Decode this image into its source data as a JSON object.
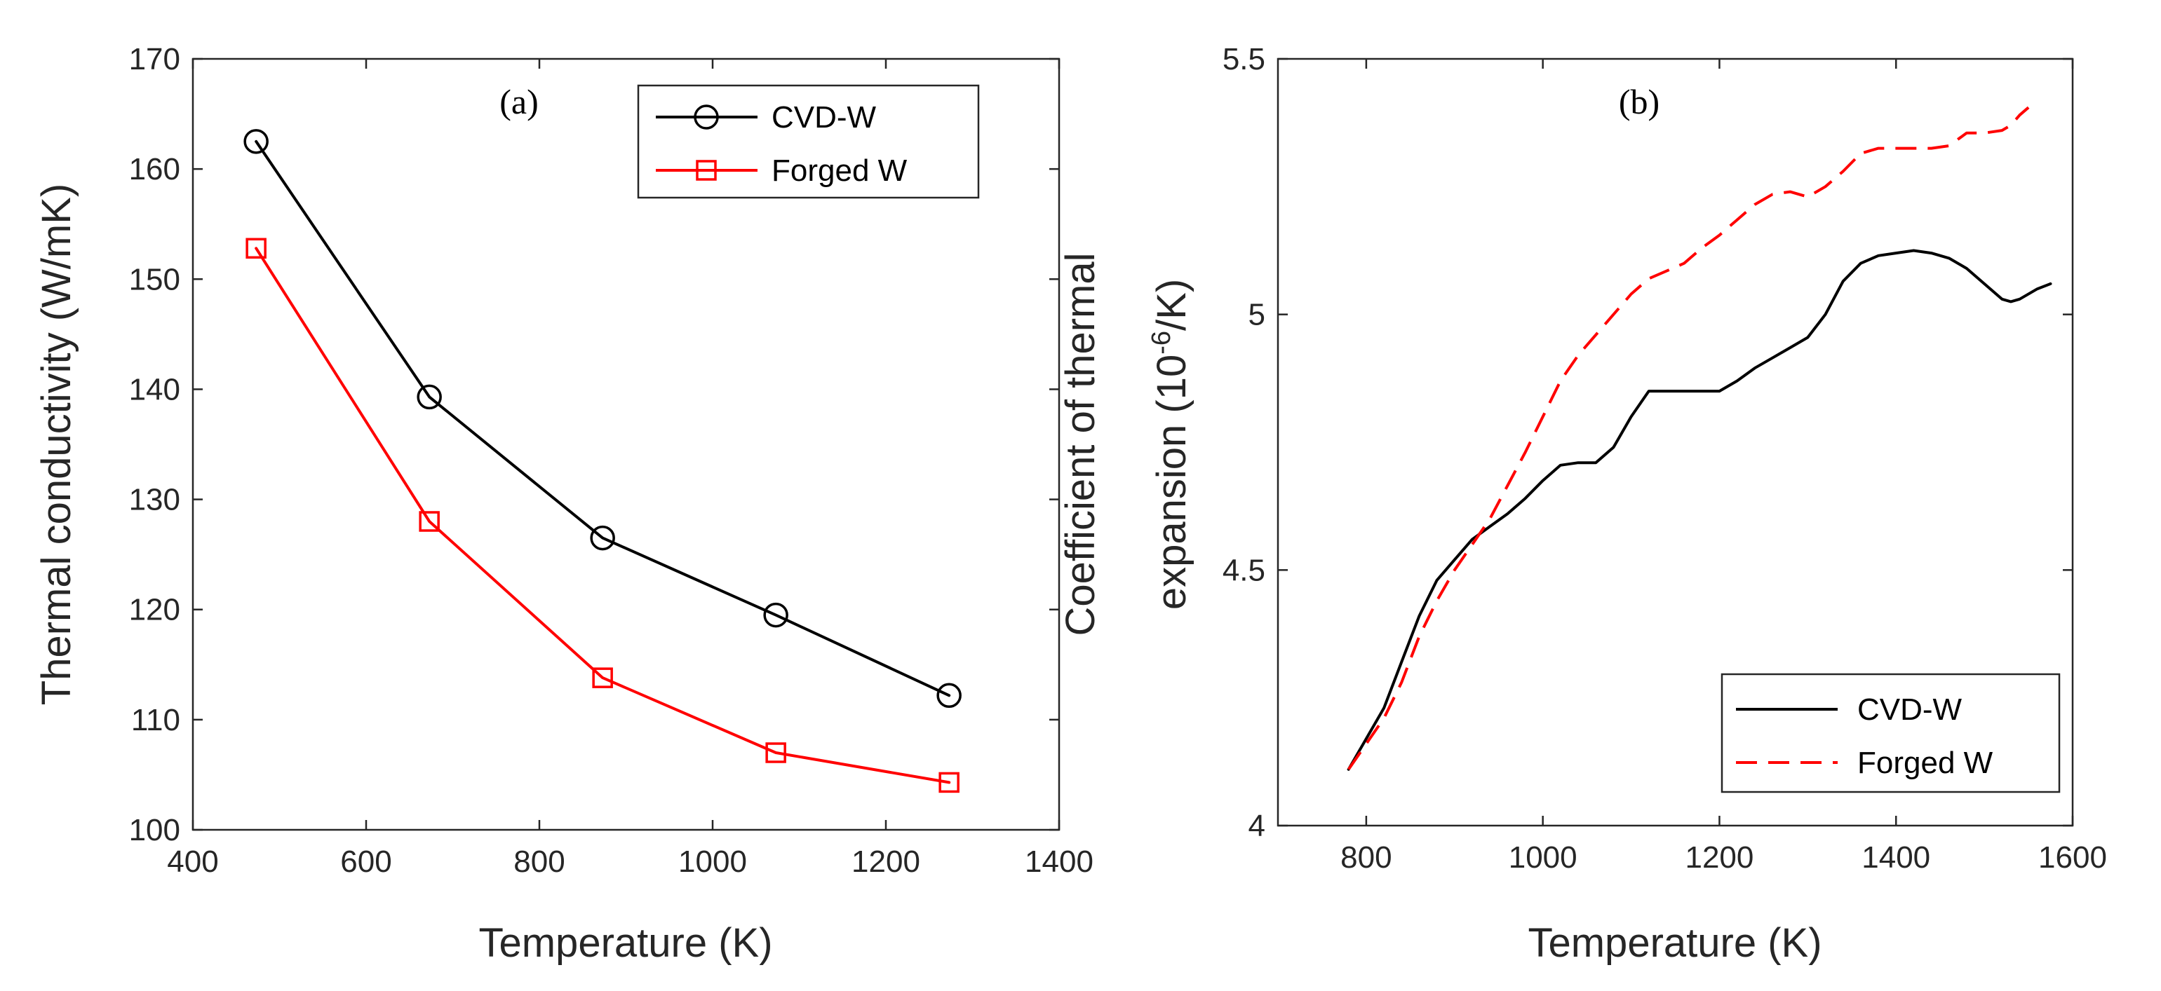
{
  "chart_data": [
    {
      "type": "line",
      "panel_label": "(a)",
      "title": "",
      "xlabel": "Temperature (K)",
      "ylabel": "Thermal conductivity (W/mK)",
      "xlim": [
        400,
        1400
      ],
      "ylim": [
        100,
        170
      ],
      "xticks": [
        400,
        600,
        800,
        1000,
        1200,
        1400
      ],
      "yticks": [
        100,
        110,
        120,
        130,
        140,
        150,
        160,
        170
      ],
      "grid": false,
      "legend_position": "top-right",
      "series": [
        {
          "name": "CVD-W",
          "color": "#000000",
          "line_style": "solid",
          "marker": "circle",
          "x": [
            473,
            673,
            873,
            1073,
            1273
          ],
          "y": [
            162.5,
            139.3,
            126.5,
            119.5,
            112.2
          ]
        },
        {
          "name": "Forged W",
          "color": "#ff0000",
          "line_style": "solid",
          "marker": "square",
          "x": [
            473,
            673,
            873,
            1073,
            1273
          ],
          "y": [
            152.8,
            128.0,
            113.8,
            107.0,
            104.3
          ]
        }
      ]
    },
    {
      "type": "line",
      "panel_label": "(b)",
      "title": "",
      "xlabel": "Temperature (K)",
      "ylabel_line1": "Coefficient of thermal",
      "ylabel_line2": "expansion (10",
      "ylabel_exponent": "-6",
      "ylabel_suffix": "/K)",
      "xlim": [
        700,
        1600
      ],
      "ylim": [
        4,
        5.5
      ],
      "xticks": [
        800,
        1000,
        1200,
        1400,
        1600
      ],
      "yticks": [
        4,
        4.5,
        5,
        5.5
      ],
      "grid": false,
      "legend_position": "bottom-right",
      "series": [
        {
          "name": "CVD-W",
          "color": "#000000",
          "line_style": "solid",
          "marker": "none",
          "x": [
            780,
            800,
            820,
            840,
            860,
            880,
            900,
            920,
            940,
            960,
            980,
            1000,
            1020,
            1040,
            1060,
            1080,
            1100,
            1120,
            1140,
            1160,
            1180,
            1200,
            1220,
            1240,
            1260,
            1280,
            1300,
            1320,
            1340,
            1360,
            1380,
            1400,
            1420,
            1440,
            1460,
            1480,
            1500,
            1520,
            1530,
            1540,
            1560,
            1575
          ],
          "y": [
            4.11,
            4.17,
            4.23,
            4.32,
            4.41,
            4.48,
            4.52,
            4.56,
            4.585,
            4.61,
            4.64,
            4.675,
            4.705,
            4.71,
            4.71,
            4.74,
            4.8,
            4.85,
            4.85,
            4.85,
            4.85,
            4.85,
            4.87,
            4.895,
            4.915,
            4.935,
            4.955,
            5.0,
            5.065,
            5.1,
            5.115,
            5.12,
            5.125,
            5.12,
            5.11,
            5.09,
            5.06,
            5.03,
            5.025,
            5.03,
            5.05,
            5.06
          ]
        },
        {
          "name": "Forged W",
          "color": "#ff0000",
          "line_style": "dashed",
          "marker": "none",
          "x": [
            780,
            800,
            820,
            840,
            860,
            880,
            900,
            920,
            940,
            960,
            980,
            1000,
            1020,
            1040,
            1060,
            1080,
            1100,
            1120,
            1140,
            1160,
            1180,
            1200,
            1220,
            1240,
            1260,
            1280,
            1300,
            1320,
            1340,
            1360,
            1380,
            1400,
            1420,
            1440,
            1460,
            1480,
            1500,
            1520,
            1530,
            1540,
            1550
          ],
          "y": [
            4.11,
            4.16,
            4.21,
            4.28,
            4.37,
            4.44,
            4.5,
            4.55,
            4.6,
            4.665,
            4.73,
            4.8,
            4.87,
            4.92,
            4.96,
            5.0,
            5.04,
            5.07,
            5.085,
            5.1,
            5.13,
            5.155,
            5.185,
            5.215,
            5.235,
            5.24,
            5.23,
            5.25,
            5.28,
            5.315,
            5.325,
            5.325,
            5.325,
            5.325,
            5.33,
            5.355,
            5.355,
            5.36,
            5.37,
            5.39,
            5.405
          ]
        }
      ]
    }
  ]
}
